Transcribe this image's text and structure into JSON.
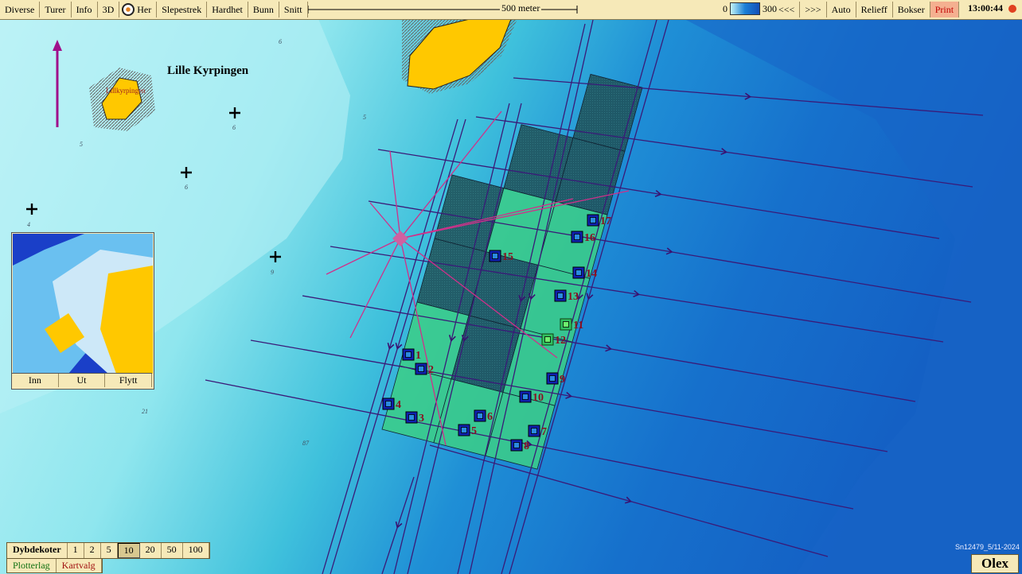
{
  "toolbar": {
    "left_buttons": [
      "Diverse",
      "Turer",
      "Info",
      "3D",
      "Her",
      "Slepestrek",
      "Hardhet",
      "Bunn",
      "Snitt"
    ],
    "scale_label": "500 meter",
    "depth_min": "0",
    "depth_max": "300",
    "right_buttons": [
      "<<<",
      ">>>",
      "Auto",
      "Relieff",
      "Bokser",
      "Print"
    ],
    "clock": "13:00:44"
  },
  "map": {
    "place_names": [
      "Lille Kyrpingen",
      "Lillkyrpingen"
    ],
    "depth_labels": [
      "6",
      "6",
      "6",
      "5",
      "5",
      "4",
      "9",
      "21",
      "87",
      "5"
    ],
    "stations": [
      "1",
      "2",
      "3",
      "4",
      "5",
      "6",
      "7",
      "8",
      "9",
      "10",
      "11",
      "12",
      "13",
      "14",
      "15",
      "16",
      "17"
    ]
  },
  "minimap": {
    "buttons": [
      "Inn",
      "Ut",
      "Flytt"
    ]
  },
  "depth_contours": {
    "label": "Dybdekoter",
    "options": [
      "1",
      "2",
      "5",
      "10",
      "20",
      "50",
      "100"
    ],
    "selected_index": 3
  },
  "tabs": [
    "Plotterlag",
    "Kartvalg"
  ],
  "footer": {
    "serial": "Sn12479_5/11-2024",
    "logo": "Olex"
  }
}
